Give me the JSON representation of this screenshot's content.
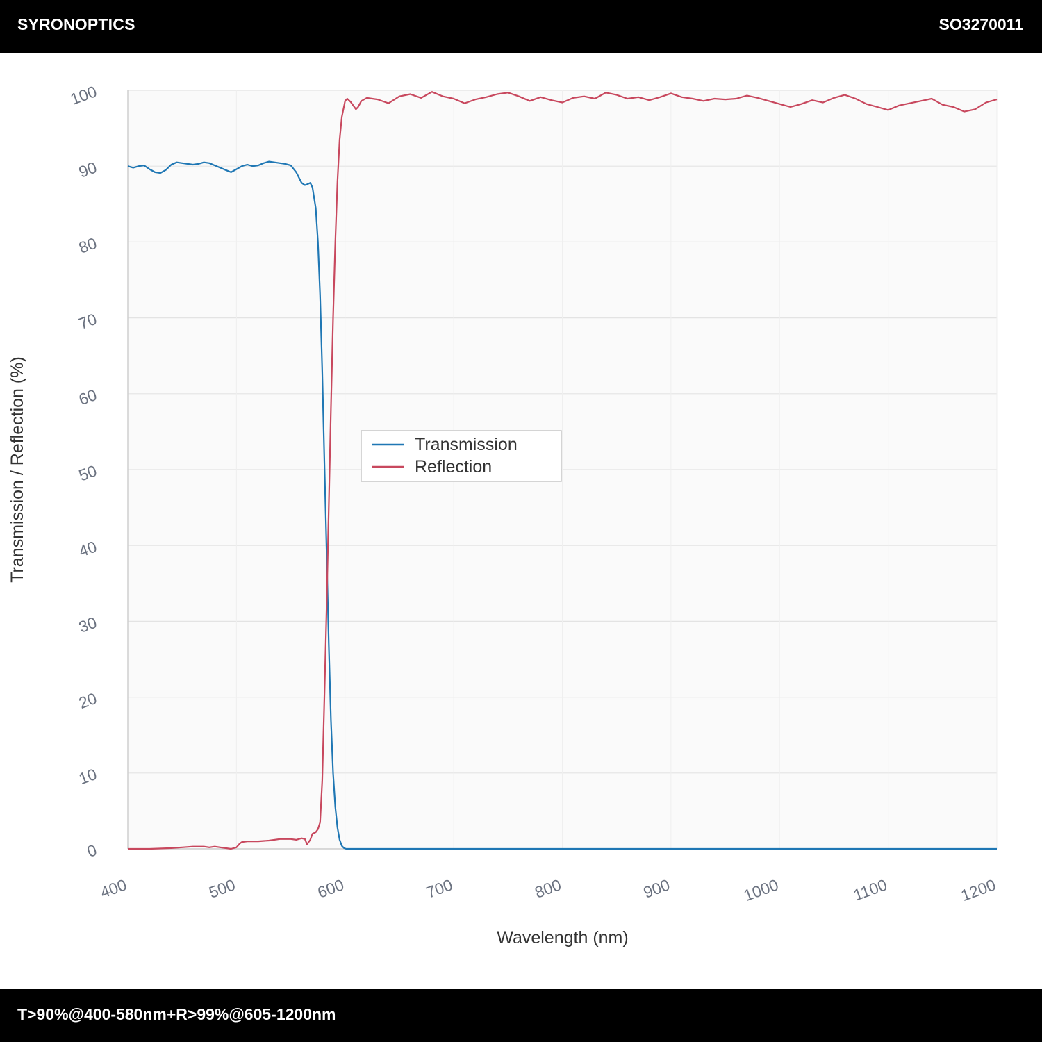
{
  "header": {
    "brand": "SYRONOPTICS",
    "part_number": "SO3270011"
  },
  "footer": {
    "spec": "T>90%@400-580nm+R>99%@605-1200nm"
  },
  "chart_data": {
    "type": "line",
    "title": "",
    "xlabel": "Wavelength (nm)",
    "ylabel": "Transmission / Reflection (%)",
    "xlim": [
      400,
      1200
    ],
    "ylim": [
      0,
      100
    ],
    "xticks": [
      400,
      500,
      600,
      700,
      800,
      900,
      1000,
      1100,
      1200
    ],
    "yticks": [
      0,
      10,
      20,
      30,
      40,
      50,
      60,
      70,
      80,
      90,
      100
    ],
    "grid": true,
    "legend_position": "center-left",
    "series": [
      {
        "name": "Transmission",
        "color": "#1f77b4",
        "x": [
          400,
          405,
          410,
          415,
          420,
          425,
          430,
          435,
          440,
          445,
          450,
          455,
          460,
          465,
          470,
          475,
          480,
          485,
          490,
          495,
          500,
          505,
          510,
          515,
          520,
          525,
          530,
          535,
          540,
          545,
          550,
          555,
          560,
          563,
          565,
          568,
          570,
          573,
          575,
          577,
          579,
          581,
          583,
          585,
          587,
          589,
          591,
          593,
          595,
          597,
          599,
          601,
          603,
          605,
          610,
          620,
          650,
          700,
          800,
          900,
          1000,
          1100,
          1200
        ],
        "y": [
          90.0,
          89.8,
          90.0,
          90.1,
          89.6,
          89.2,
          89.1,
          89.5,
          90.2,
          90.5,
          90.4,
          90.3,
          90.2,
          90.3,
          90.5,
          90.4,
          90.1,
          89.8,
          89.5,
          89.2,
          89.6,
          90.0,
          90.2,
          90.0,
          90.1,
          90.4,
          90.6,
          90.5,
          90.4,
          90.3,
          90.1,
          89.2,
          87.8,
          87.5,
          87.6,
          87.8,
          87.2,
          84.5,
          80.0,
          73.0,
          63.0,
          51.0,
          39.0,
          27.0,
          17.0,
          10.0,
          5.5,
          2.8,
          1.2,
          0.4,
          0.1,
          0.0,
          0.0,
          0.0,
          0.0,
          0.0,
          0.0,
          0.0,
          0.0,
          0.0,
          0.0,
          0.0,
          0.0
        ]
      },
      {
        "name": "Reflection",
        "color": "#c8485e",
        "x": [
          400,
          420,
          440,
          450,
          460,
          470,
          475,
          480,
          485,
          490,
          495,
          500,
          503,
          505,
          510,
          520,
          530,
          540,
          550,
          555,
          560,
          563,
          565,
          568,
          570,
          573,
          575,
          577,
          579,
          581,
          583,
          585,
          587,
          589,
          591,
          593,
          595,
          597,
          600,
          602,
          605,
          610,
          612,
          615,
          620,
          630,
          640,
          650,
          660,
          670,
          680,
          690,
          700,
          710,
          720,
          730,
          740,
          750,
          760,
          770,
          780,
          790,
          800,
          810,
          820,
          830,
          840,
          850,
          860,
          870,
          880,
          890,
          900,
          910,
          920,
          930,
          940,
          950,
          960,
          970,
          980,
          990,
          1000,
          1010,
          1020,
          1030,
          1040,
          1050,
          1060,
          1070,
          1080,
          1090,
          1100,
          1110,
          1120,
          1130,
          1140,
          1150,
          1160,
          1170,
          1180,
          1190,
          1200
        ],
        "y": [
          0.0,
          0.0,
          0.1,
          0.2,
          0.3,
          0.3,
          0.2,
          0.3,
          0.2,
          0.1,
          0.0,
          0.2,
          0.7,
          0.9,
          1.0,
          1.0,
          1.1,
          1.3,
          1.3,
          1.2,
          1.4,
          1.3,
          0.6,
          1.2,
          2.0,
          2.2,
          2.6,
          3.5,
          9.0,
          20.0,
          32.0,
          45.0,
          58.0,
          70.0,
          80.0,
          88.0,
          93.5,
          96.5,
          98.6,
          98.9,
          98.5,
          97.5,
          97.8,
          98.6,
          99.0,
          98.8,
          98.3,
          99.2,
          99.5,
          99.0,
          99.8,
          99.2,
          98.9,
          98.3,
          98.8,
          99.1,
          99.5,
          99.7,
          99.2,
          98.6,
          99.1,
          98.7,
          98.4,
          99.0,
          99.2,
          98.9,
          99.7,
          99.4,
          98.9,
          99.1,
          98.7,
          99.1,
          99.6,
          99.1,
          98.9,
          98.6,
          98.9,
          98.8,
          98.9,
          99.3,
          99.0,
          98.6,
          98.2,
          97.8,
          98.2,
          98.7,
          98.4,
          99.0,
          99.4,
          98.9,
          98.2,
          97.8,
          97.4,
          98.0,
          98.3,
          98.6,
          98.9,
          98.1,
          97.8,
          97.2,
          97.5,
          98.4,
          98.8
        ]
      }
    ]
  }
}
